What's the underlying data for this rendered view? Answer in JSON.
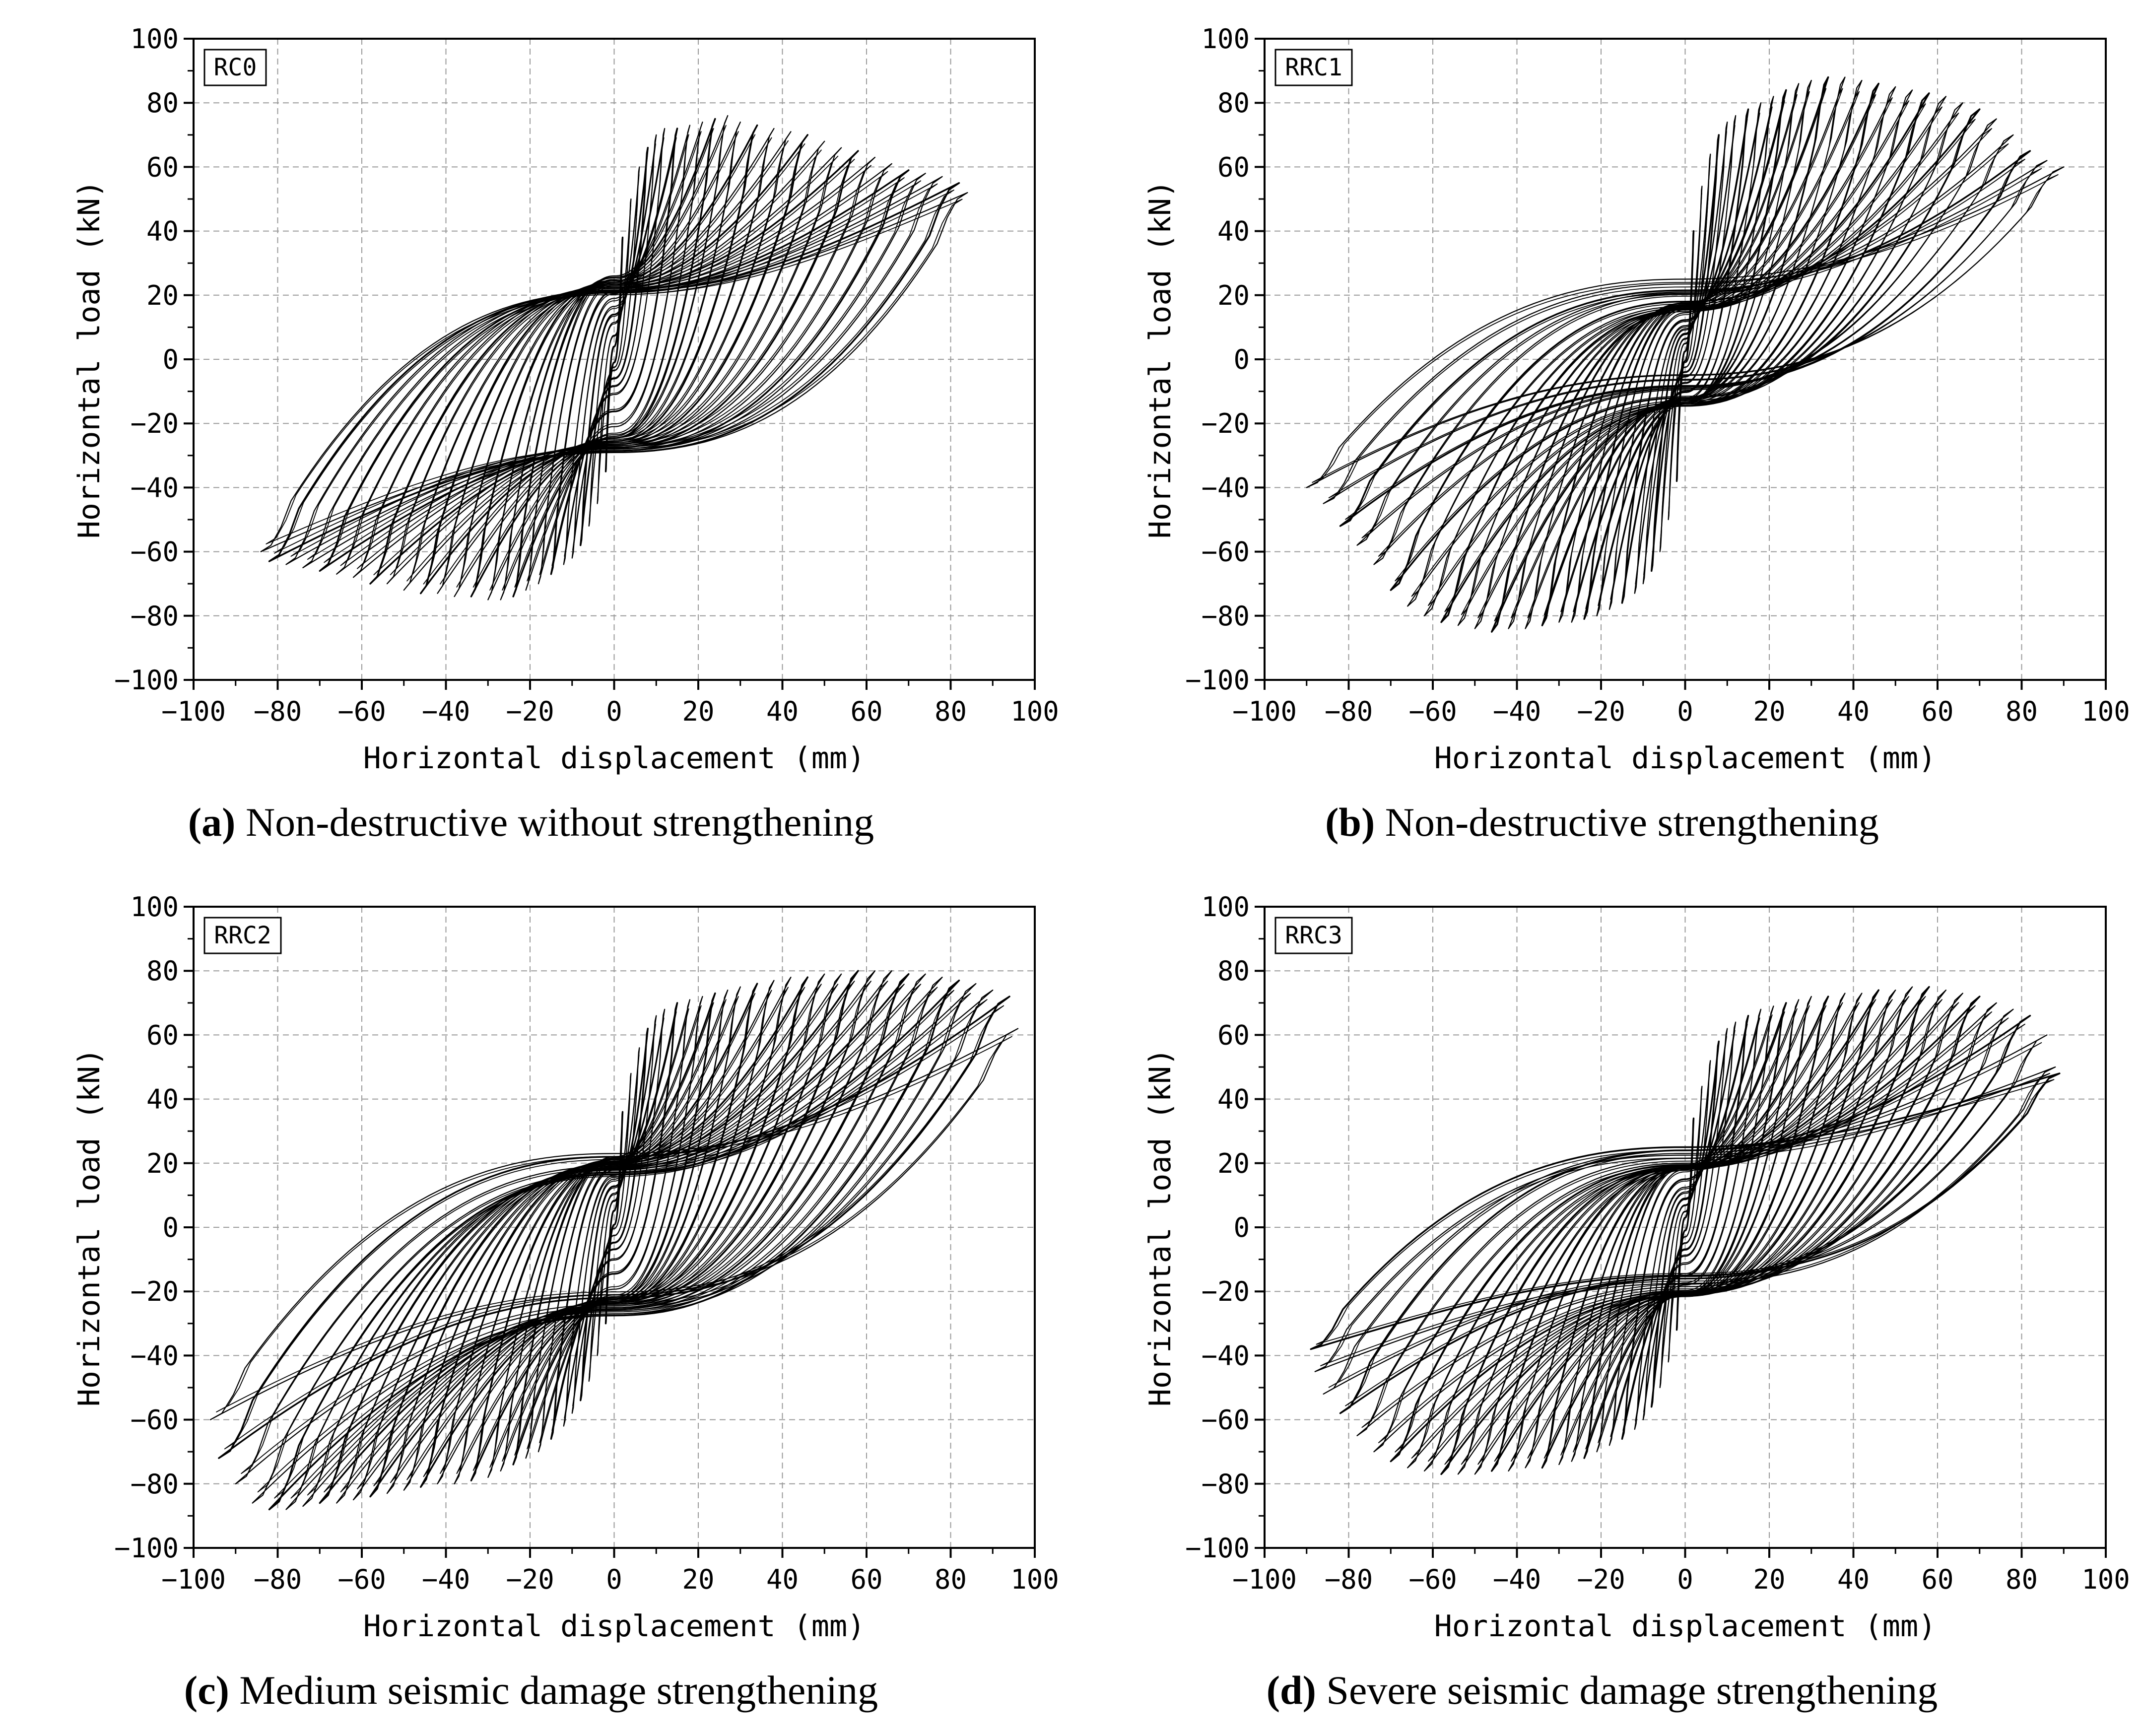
{
  "colors": {
    "line": "#000000",
    "grid": "#9a9a9a",
    "background": "#ffffff"
  },
  "chart_data": [
    {
      "type": "line",
      "panel_id": "a",
      "tag": "RC0",
      "caption_letter": "(a)",
      "caption_text": "Non-destructive without strengthening",
      "xlabel": "Horizontal displacement (mm)",
      "ylabel": "Horizontal load (kN)",
      "xlim": [
        -100,
        100
      ],
      "ylim": [
        -100,
        100
      ],
      "xticks": [
        -100,
        -80,
        -60,
        -40,
        -20,
        0,
        20,
        40,
        60,
        80,
        100
      ],
      "yticks": [
        -100,
        -80,
        -60,
        -40,
        -20,
        0,
        20,
        40,
        60,
        80,
        100
      ],
      "grid": true,
      "series": [
        {
          "name": "hysteresis",
          "amplitudes_mm": [
            2,
            4,
            6,
            8,
            10,
            12,
            15,
            18,
            21,
            24,
            27,
            30,
            34,
            38,
            42,
            46,
            50,
            54,
            58,
            62,
            66,
            70,
            74,
            78,
            82,
            84
          ],
          "peak_load_pos_kN": [
            38,
            50,
            60,
            66,
            70,
            72,
            72,
            73,
            74,
            75,
            76,
            74,
            73,
            72,
            71,
            70,
            68,
            66,
            65,
            63,
            61,
            59,
            58,
            57,
            55,
            52
          ],
          "peak_load_neg_kN": [
            -35,
            -45,
            -52,
            -58,
            -62,
            -64,
            -67,
            -70,
            -72,
            -74,
            -75,
            -75,
            -74,
            -74,
            -73,
            -73,
            -72,
            -70,
            -70,
            -68,
            -67,
            -66,
            -65,
            -64,
            -63,
            -60
          ],
          "pinch_load_kN": 25
        }
      ]
    },
    {
      "type": "line",
      "panel_id": "b",
      "tag": "RRC1",
      "caption_letter": "(b)",
      "caption_text": "Non-destructive strengthening",
      "xlabel": "Horizontal displacement (mm)",
      "ylabel": "Horizontal load (kN)",
      "xlim": [
        -100,
        100
      ],
      "ylim": [
        -100,
        100
      ],
      "xticks": [
        -100,
        -80,
        -60,
        -40,
        -20,
        0,
        20,
        40,
        60,
        80,
        100
      ],
      "yticks": [
        -100,
        -80,
        -60,
        -40,
        -20,
        0,
        20,
        40,
        60,
        80,
        100
      ],
      "grid": true,
      "series": [
        {
          "name": "hysteresis",
          "amplitudes_mm": [
            2,
            4,
            6,
            8,
            10,
            12,
            15,
            18,
            21,
            24,
            27,
            30,
            34,
            38,
            42,
            46,
            50,
            54,
            58,
            62,
            66,
            70,
            74,
            78,
            82,
            86,
            90
          ],
          "peak_load_pos_kN": [
            40,
            54,
            64,
            70,
            74,
            76,
            78,
            80,
            82,
            84,
            86,
            87,
            88,
            88,
            87,
            86,
            85,
            84,
            83,
            82,
            80,
            78,
            75,
            70,
            65,
            62,
            60
          ],
          "peak_load_neg_kN": [
            -38,
            -50,
            -60,
            -66,
            -70,
            -73,
            -76,
            -78,
            -80,
            -81,
            -82,
            -82,
            -83,
            -84,
            -84,
            -85,
            -84,
            -83,
            -82,
            -80,
            -77,
            -72,
            -64,
            -58,
            -52,
            -45,
            -40
          ],
          "pinch_load_kN": 15
        }
      ]
    },
    {
      "type": "line",
      "panel_id": "c",
      "tag": "RRC2",
      "caption_letter": "(c)",
      "caption_text": "Medium seismic damage strengthening",
      "xlabel": "Horizontal displacement (mm)",
      "ylabel": "Horizontal load (kN)",
      "xlim": [
        -100,
        100
      ],
      "ylim": [
        -100,
        100
      ],
      "xticks": [
        -100,
        -80,
        -60,
        -40,
        -20,
        0,
        20,
        40,
        60,
        80,
        100
      ],
      "yticks": [
        -100,
        -80,
        -60,
        -40,
        -20,
        0,
        20,
        40,
        60,
        80,
        100
      ],
      "grid": true,
      "series": [
        {
          "name": "hysteresis",
          "amplitudes_mm": [
            2,
            4,
            6,
            8,
            10,
            12,
            15,
            18,
            21,
            24,
            27,
            30,
            34,
            38,
            42,
            46,
            50,
            54,
            58,
            62,
            66,
            70,
            74,
            78,
            82,
            86,
            90,
            94,
            96
          ],
          "peak_load_pos_kN": [
            36,
            48,
            56,
            62,
            66,
            68,
            70,
            71,
            72,
            73,
            74,
            75,
            76,
            77,
            78,
            78,
            79,
            79,
            80,
            80,
            80,
            79,
            79,
            78,
            77,
            76,
            74,
            72,
            62
          ],
          "peak_load_neg_kN": [
            -30,
            -40,
            -48,
            -54,
            -58,
            -62,
            -66,
            -70,
            -72,
            -74,
            -76,
            -78,
            -79,
            -80,
            -80,
            -81,
            -82,
            -83,
            -84,
            -85,
            -86,
            -86,
            -87,
            -88,
            -88,
            -86,
            -80,
            -72,
            -60
          ],
          "pinch_load_kN": 22
        }
      ]
    },
    {
      "type": "line",
      "panel_id": "d",
      "tag": "RRC3",
      "caption_letter": "(d)",
      "caption_text": "Severe seismic damage strengthening",
      "xlabel": "Horizontal displacement (mm)",
      "ylabel": "Horizontal load (kN)",
      "xlim": [
        -100,
        100
      ],
      "ylim": [
        -100,
        100
      ],
      "xticks": [
        -100,
        -80,
        -60,
        -40,
        -20,
        0,
        20,
        40,
        60,
        80,
        100
      ],
      "yticks": [
        -100,
        -80,
        -60,
        -40,
        -20,
        0,
        20,
        40,
        60,
        80,
        100
      ],
      "grid": true,
      "series": [
        {
          "name": "hysteresis",
          "amplitudes_mm": [
            2,
            4,
            6,
            8,
            10,
            12,
            15,
            18,
            21,
            24,
            27,
            30,
            34,
            38,
            42,
            46,
            50,
            54,
            58,
            62,
            66,
            70,
            74,
            78,
            82,
            86,
            88,
            89
          ],
          "peak_load_pos_kN": [
            34,
            44,
            52,
            58,
            62,
            64,
            66,
            68,
            69,
            70,
            71,
            72,
            72,
            73,
            73,
            74,
            74,
            75,
            75,
            74,
            73,
            72,
            70,
            68,
            66,
            60,
            50,
            48
          ],
          "peak_load_neg_kN": [
            -32,
            -42,
            -50,
            -56,
            -60,
            -63,
            -66,
            -68,
            -70,
            -72,
            -73,
            -74,
            -75,
            -75,
            -76,
            -76,
            -77,
            -77,
            -77,
            -76,
            -75,
            -73,
            -70,
            -65,
            -58,
            -52,
            -45,
            -38
          ],
          "pinch_load_kN": 20
        }
      ]
    }
  ]
}
